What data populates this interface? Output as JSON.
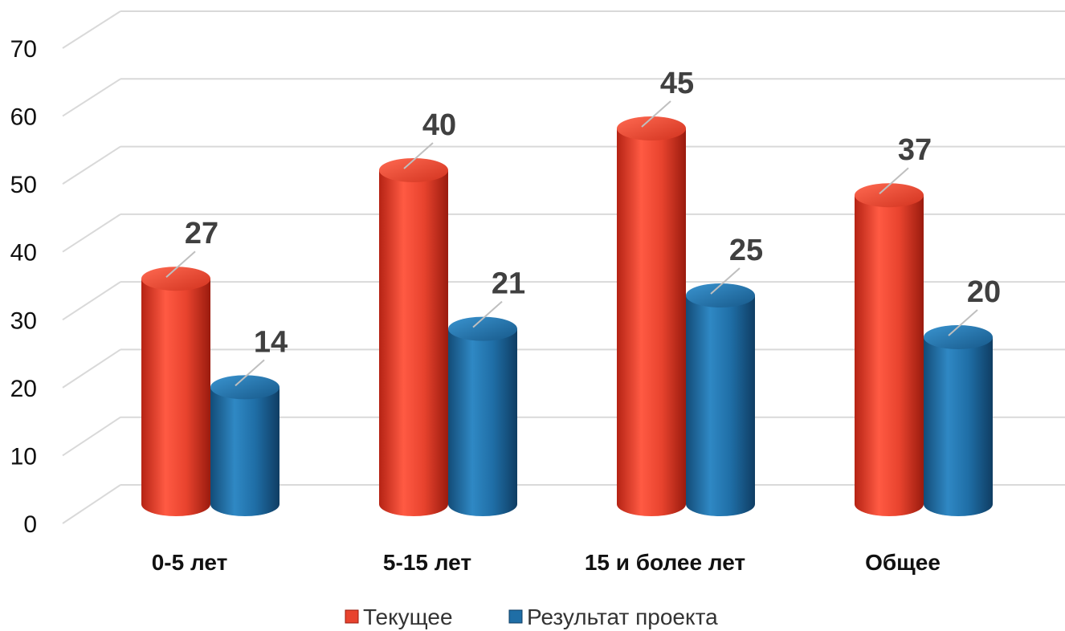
{
  "chart_data": {
    "type": "bar",
    "title": "",
    "xlabel": "",
    "ylabel": "",
    "categories": [
      "0-5 лет",
      "5-15 лет",
      "15 и более лет",
      "Общее"
    ],
    "series": [
      {
        "name": "Текущее",
        "values": [
          27,
          40,
          45,
          37
        ],
        "color": "#e8432e"
      },
      {
        "name": "Результат проекта",
        "values": [
          14,
          21,
          25,
          20
        ],
        "color": "#1f6ea6"
      }
    ],
    "ylim": [
      0,
      70
    ],
    "yticks": [
      0,
      10,
      20,
      30,
      40,
      50,
      60,
      70
    ],
    "grid": true,
    "legend": "bottom-center",
    "style": "3d-cylinder"
  }
}
